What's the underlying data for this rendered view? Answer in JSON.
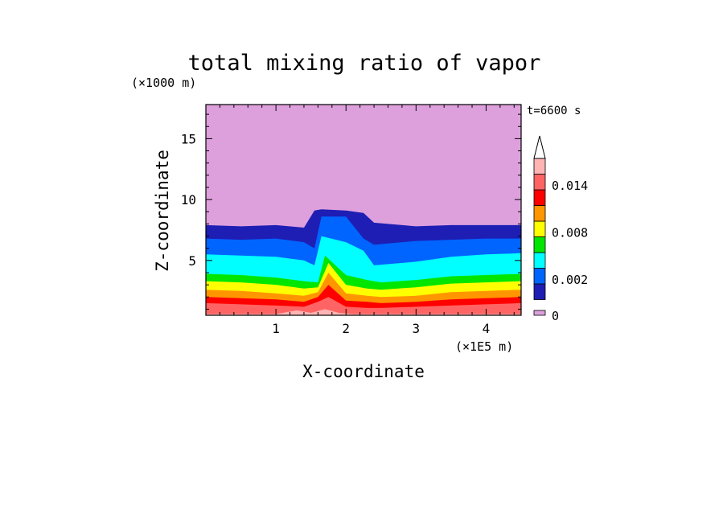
{
  "chart_data": {
    "type": "heatmap",
    "title": "total mixing ratio of vapor",
    "xlabel": "X-coordinate",
    "ylabel": "Z-coordinate",
    "x_unit": "(×1E5 m)",
    "y_unit": "(×1000 m)",
    "time_label": "t=6600 s",
    "xlim": [
      0,
      4.5
    ],
    "ylim": [
      0.5,
      17.8
    ],
    "x_ticks": [
      1,
      2,
      3,
      4
    ],
    "y_ticks": [
      5,
      10,
      15
    ],
    "colorbar": {
      "levels": [
        0,
        0.001,
        0.002,
        0.004,
        0.006,
        0.008,
        0.01,
        0.012,
        0.014,
        0.016
      ],
      "colors": [
        "#dda0dd",
        "#1e1eb4",
        "#0064ff",
        "#00ffff",
        "#00e600",
        "#ffff00",
        "#ff9600",
        "#ff0000",
        "#ff6464",
        "#ffb4b4"
      ],
      "tick_labels": [
        {
          "value": 0,
          "label": "0"
        },
        {
          "value": 0.002,
          "label": "0.002"
        },
        {
          "value": 0.008,
          "label": "0.008"
        },
        {
          "value": 0.014,
          "label": "0.014"
        }
      ],
      "extend": "max"
    },
    "contour_heights": [
      {
        "level": 0.001,
        "x": [
          0,
          0.5,
          1.0,
          1.4,
          1.55,
          1.65,
          2.0,
          2.25,
          2.4,
          3.0,
          3.5,
          4.0,
          4.5
        ],
        "z": [
          7.9,
          7.8,
          7.9,
          7.7,
          9.1,
          9.2,
          9.1,
          8.9,
          8.1,
          7.8,
          7.9,
          7.9,
          7.9
        ]
      },
      {
        "level": 0.002,
        "x": [
          0,
          0.5,
          1.0,
          1.4,
          1.55,
          1.65,
          2.0,
          2.25,
          2.4,
          3.0,
          3.5,
          4.0,
          4.5
        ],
        "z": [
          6.8,
          6.7,
          6.8,
          6.5,
          6.0,
          8.6,
          8.6,
          6.8,
          6.3,
          6.6,
          6.7,
          6.8,
          6.8
        ]
      },
      {
        "level": 0.004,
        "x": [
          0,
          0.5,
          1.0,
          1.4,
          1.55,
          1.65,
          2.0,
          2.25,
          2.4,
          3.0,
          3.5,
          4.0,
          4.5
        ],
        "z": [
          5.5,
          5.4,
          5.3,
          5.0,
          4.6,
          7.0,
          6.5,
          5.8,
          4.6,
          4.9,
          5.3,
          5.5,
          5.6
        ]
      },
      {
        "level": 0.006,
        "x": [
          0,
          0.5,
          1.0,
          1.4,
          1.6,
          1.7,
          2.0,
          2.3,
          2.5,
          3.0,
          3.5,
          4.0,
          4.5
        ],
        "z": [
          3.9,
          3.8,
          3.6,
          3.3,
          3.2,
          5.4,
          3.8,
          3.4,
          3.2,
          3.4,
          3.7,
          3.8,
          3.9
        ]
      },
      {
        "level": 0.008,
        "x": [
          0,
          0.5,
          1.0,
          1.4,
          1.6,
          1.75,
          2.0,
          2.3,
          2.5,
          3.0,
          3.5,
          4.0,
          4.5
        ],
        "z": [
          3.3,
          3.2,
          3.0,
          2.7,
          2.8,
          4.8,
          3.0,
          2.7,
          2.6,
          2.8,
          3.1,
          3.2,
          3.3
        ]
      },
      {
        "level": 0.01,
        "x": [
          0,
          0.5,
          1.0,
          1.4,
          1.6,
          1.75,
          2.0,
          2.3,
          2.5,
          3.0,
          3.5,
          4.0,
          4.5
        ],
        "z": [
          2.6,
          2.5,
          2.3,
          2.1,
          2.4,
          4.0,
          2.3,
          2.1,
          2.0,
          2.1,
          2.4,
          2.5,
          2.6
        ]
      },
      {
        "level": 0.012,
        "x": [
          0,
          0.5,
          1.0,
          1.4,
          1.6,
          1.75,
          2.0,
          2.3,
          2.5,
          3.0,
          3.5,
          4.0,
          4.5
        ],
        "z": [
          2.0,
          1.9,
          1.8,
          1.6,
          2.0,
          3.0,
          1.7,
          1.6,
          1.5,
          1.6,
          1.8,
          1.9,
          2.0
        ]
      },
      {
        "level": 0.014,
        "x": [
          0,
          0.5,
          1.0,
          1.4,
          1.6,
          1.75,
          2.0,
          2.3,
          2.5,
          3.0,
          3.5,
          4.0,
          4.5
        ],
        "z": [
          1.5,
          1.4,
          1.3,
          1.2,
          1.6,
          2.0,
          1.2,
          1.1,
          1.1,
          1.2,
          1.3,
          1.4,
          1.5
        ]
      },
      {
        "level": 0.016,
        "x": [
          0,
          0.5,
          1.0,
          1.3,
          1.5,
          1.7,
          1.9,
          2.1,
          2.5,
          3.0,
          4.0,
          4.5
        ],
        "z": [
          0.6,
          0.6,
          0.6,
          0.9,
          0.7,
          1.0,
          0.7,
          0.6,
          0.6,
          0.6,
          0.6,
          0.6
        ]
      }
    ]
  }
}
